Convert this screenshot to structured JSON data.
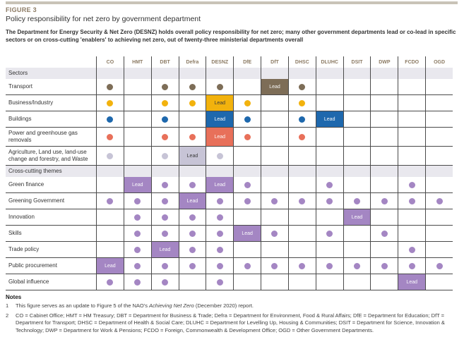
{
  "page": {
    "figure_label": "FIGURE 3",
    "title": "Policy responsibility for net zero by government department",
    "intro": "The Department for Energy Security & Net Zero (DESNZ) holds overall policy responsibility for net zero; many other government departments lead or co-lead in specific sectors or on cross-cutting 'enablers' to achieving net zero, out of twenty-three ministerial departments overall"
  },
  "colors": {
    "accent_bar": "#c9c3b7",
    "figure_label_text": "#8c7b64",
    "column_header_text": "#8c7b64",
    "band_background": "#e9e8ee",
    "grid_line": "#4a4a4a",
    "transport": "#7d6d57",
    "business_industry": "#f2b20d",
    "buildings": "#1e68ad",
    "power": "#e8705a",
    "agriculture": "#c7c4d6",
    "cross_cutting": "#a486c3"
  },
  "chart_data": {
    "type": "table",
    "title": "Policy responsibility for net zero by government department",
    "lead_label": "Lead",
    "columns": [
      "CO",
      "HMT",
      "DBT",
      "Defra",
      "DESNZ",
      "DfE",
      "DfT",
      "DHSC",
      "DLUHC",
      "DSIT",
      "DWP",
      "FCDO",
      "OGD"
    ],
    "sections": [
      {
        "label": "Sectors",
        "rows": [
          {
            "label": "Transport",
            "color": "#7d6d57",
            "lead_text_dark": false,
            "dots": [
              "CO",
              "DBT",
              "Defra",
              "DESNZ",
              "DHSC"
            ],
            "lead": [
              "DfT"
            ]
          },
          {
            "label": "Business/Industry",
            "color": "#f2b20d",
            "lead_text_dark": true,
            "dots": [
              "CO",
              "DBT",
              "Defra",
              "DfE",
              "DHSC"
            ],
            "lead": [
              "DESNZ"
            ]
          },
          {
            "label": "Buildings",
            "color": "#1e68ad",
            "lead_text_dark": false,
            "dots": [
              "CO",
              "DBT",
              "DfE",
              "DHSC"
            ],
            "lead": [
              "DESNZ",
              "DLUHC"
            ]
          },
          {
            "label": "Power and greenhouse gas removals",
            "color": "#e8705a",
            "lead_text_dark": false,
            "dots": [
              "CO",
              "DBT",
              "Defra",
              "DfE",
              "DHSC"
            ],
            "lead": [
              "DESNZ"
            ]
          },
          {
            "label": "Agriculture, Land use, land-use change and forestry, and Waste",
            "color": "#c7c4d6",
            "lead_text_dark": true,
            "dots": [
              "CO",
              "DBT",
              "DESNZ"
            ],
            "lead": [
              "Defra"
            ]
          }
        ]
      },
      {
        "label": "Cross-cutting themes",
        "rows": [
          {
            "label": "Green finance",
            "color": "#a486c3",
            "lead_text_dark": false,
            "dots": [
              "DBT",
              "Defra",
              "DfE",
              "DLUHC",
              "FCDO"
            ],
            "lead": [
              "HMT",
              "DESNZ"
            ]
          },
          {
            "label": "Greening Government",
            "color": "#a486c3",
            "lead_text_dark": false,
            "dots": [
              "CO",
              "HMT",
              "DBT",
              "DESNZ",
              "DfE",
              "DfT",
              "DHSC",
              "DLUHC",
              "DSIT",
              "DWP",
              "FCDO",
              "OGD"
            ],
            "lead": [
              "Defra"
            ]
          },
          {
            "label": "Innovation",
            "color": "#a486c3",
            "lead_text_dark": false,
            "dots": [
              "HMT",
              "DBT",
              "Defra",
              "DESNZ"
            ],
            "lead": [
              "DSIT"
            ]
          },
          {
            "label": "Skills",
            "color": "#a486c3",
            "lead_text_dark": false,
            "dots": [
              "HMT",
              "DBT",
              "Defra",
              "DESNZ",
              "DfT",
              "DLUHC",
              "DWP"
            ],
            "lead": [
              "DfE"
            ]
          },
          {
            "label": "Trade policy",
            "color": "#a486c3",
            "lead_text_dark": false,
            "dots": [
              "HMT",
              "Defra",
              "DESNZ",
              "FCDO"
            ],
            "lead": [
              "DBT"
            ]
          },
          {
            "label": "Public procurement",
            "color": "#a486c3",
            "lead_text_dark": false,
            "dots": [
              "HMT",
              "DBT",
              "Defra",
              "DESNZ",
              "DfE",
              "DfT",
              "DHSC",
              "DLUHC",
              "DSIT",
              "DWP",
              "FCDO",
              "OGD"
            ],
            "lead": [
              "CO"
            ]
          },
          {
            "label": "Global influence",
            "color": "#a486c3",
            "lead_text_dark": false,
            "dots": [
              "CO",
              "HMT",
              "DBT",
              "DESNZ"
            ],
            "lead": [
              "FCDO"
            ]
          }
        ]
      }
    ]
  },
  "notes": {
    "heading": "Notes",
    "note1": {
      "num": "1",
      "before": "This figure serves as an update to Figure 5 of the NAO's ",
      "italic": "Achieving Net Zero",
      "after": " (December 2020) report."
    },
    "note2": {
      "num": "2",
      "text": "CO = Cabinet Office; HMT = HM Treasury; DBT = Department for Business & Trade; Defra = Department for Environment, Food & Rural Affairs; DfE = Department for Education; DfT = Department for Transport; DHSC = Department of Health & Social Care; DLUHC = Department for Levelling Up, Housing & Communities; DSIT = Department for Science, Innovation & Technology; DWP = Department for Work & Pensions; FCDO = Foreign, Commonwealth & Development Office; OGD = Other Government Departments."
    }
  }
}
